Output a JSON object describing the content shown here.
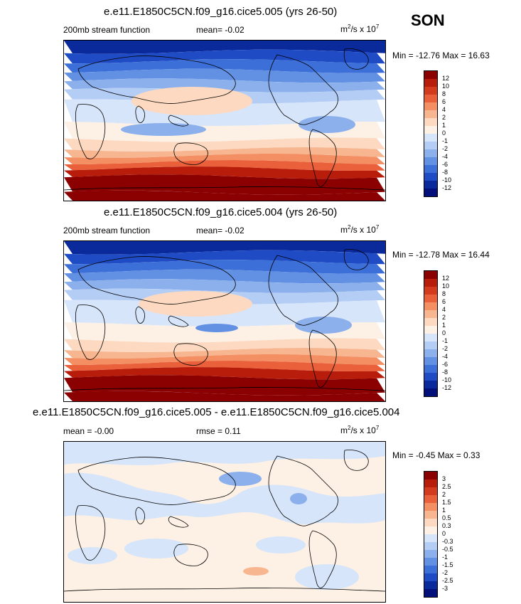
{
  "season": "SON",
  "panels": [
    {
      "title": "e.e11.E1850C5CN.f09_g16.cice5.005 (yrs 26-50)",
      "left_label": "200mb stream function",
      "center_label": "mean=  -0.02",
      "units_base": "m",
      "units_sup1": "2",
      "units_mid": "/s x 10",
      "units_sup2": "7",
      "minmax": "Min = -12.76 Max =  16.63"
    },
    {
      "title": "e.e11.E1850C5CN.f09_g16.cice5.004 (yrs 26-50)",
      "left_label": "200mb stream function",
      "center_label": "mean=  -0.02",
      "units_base": "m",
      "units_sup1": "2",
      "units_mid": "/s x 10",
      "units_sup2": "7",
      "minmax": "Min = -12.78 Max =  16.44"
    },
    {
      "title": "e.e11.E1850C5CN.f09_g16.cice5.005 - e.e11.E1850C5CN.f09_g16.cice5.004",
      "left_label": "mean =  -0.00",
      "center_label": "rmse =  0.11",
      "units_base": "m",
      "units_sup1": "2",
      "units_mid": "/s x 10",
      "units_sup2": "7",
      "minmax": "Min =  -0.45 Max =   0.33"
    }
  ],
  "chart_data": [
    {
      "type": "heatmap",
      "title": "e.e11.E1850C5CN.f09_g16.cice5.005 (yrs 26-50)",
      "variable": "200mb stream function",
      "mean": -0.02,
      "min": -12.76,
      "max": 16.63,
      "zonal_bands": [
        -12,
        -10,
        -8,
        -6,
        -4,
        -2,
        -1,
        0,
        1,
        2,
        4,
        6,
        10,
        12,
        12
      ],
      "legend_levels": [
        "12",
        "10",
        "8",
        "6",
        "4",
        "2",
        "1",
        "0",
        "-1",
        "-2",
        "-4",
        "-6",
        "-8",
        "-10",
        "-12"
      ],
      "legend_colors": [
        "#8b0000",
        "#b81d0b",
        "#d33b1e",
        "#e9603a",
        "#f38f62",
        "#f8b690",
        "#fcd9c0",
        "#fdf0e4",
        "#d6e5fa",
        "#b3cdf5",
        "#8bb0ec",
        "#6290e3",
        "#3c6fd8",
        "#1f4cc4",
        "#0a2a9c",
        "#03107a"
      ]
    },
    {
      "type": "heatmap",
      "title": "e.e11.E1850C5CN.f09_g16.cice5.004 (yrs 26-50)",
      "variable": "200mb stream function",
      "mean": -0.02,
      "min": -12.78,
      "max": 16.44,
      "zonal_bands": [
        -12,
        -10,
        -8,
        -6,
        -4,
        -2,
        -1,
        0,
        1,
        2,
        4,
        6,
        10,
        12,
        12
      ],
      "legend_levels": [
        "12",
        "10",
        "8",
        "6",
        "4",
        "2",
        "1",
        "0",
        "-1",
        "-2",
        "-4",
        "-6",
        "-8",
        "-10",
        "-12"
      ],
      "legend_colors": [
        "#8b0000",
        "#b81d0b",
        "#d33b1e",
        "#e9603a",
        "#f38f62",
        "#f8b690",
        "#fcd9c0",
        "#fdf0e4",
        "#d6e5fa",
        "#b3cdf5",
        "#8bb0ec",
        "#6290e3",
        "#3c6fd8",
        "#1f4cc4",
        "#0a2a9c",
        "#03107a"
      ]
    },
    {
      "type": "heatmap",
      "title": "e.e11.E1850C5CN.f09_g16.cice5.005 - e.e11.E1850C5CN.f09_g16.cice5.004",
      "mean": -0.0,
      "rmse": 0.11,
      "min": -0.45,
      "max": 0.33,
      "legend_levels": [
        "3",
        "2.5",
        "2",
        "1.5",
        "1",
        "0.5",
        "0.3",
        "0",
        "-0.3",
        "-0.5",
        "-1",
        "-1.5",
        "-2",
        "-2.5",
        "-3"
      ],
      "legend_colors": [
        "#8b0000",
        "#b81d0b",
        "#d33b1e",
        "#e9603a",
        "#f38f62",
        "#f8b690",
        "#fcd9c0",
        "#fdf0e4",
        "#d6e5fa",
        "#b3cdf5",
        "#8bb0ec",
        "#6290e3",
        "#3c6fd8",
        "#1f4cc4",
        "#0a2a9c",
        "#03107a"
      ]
    }
  ]
}
